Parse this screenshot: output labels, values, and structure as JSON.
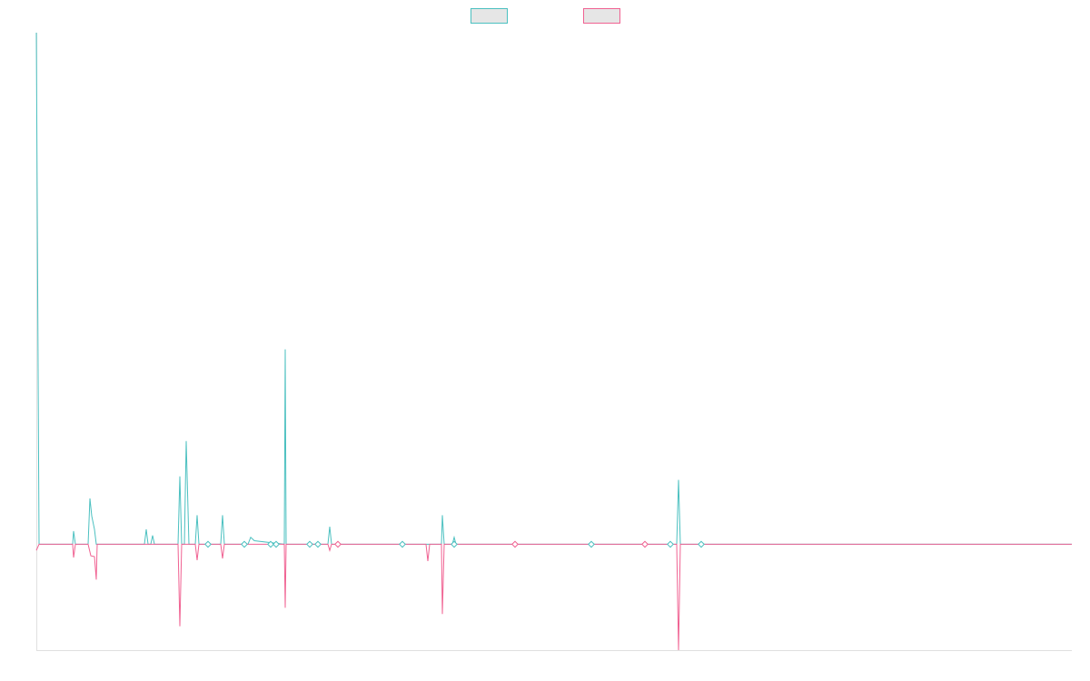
{
  "chart_data": {
    "type": "line",
    "title": "",
    "xlabel": "",
    "ylabel": "",
    "grid": false,
    "legend_position": "top-center",
    "ylim": [
      -120,
      580
    ],
    "series": [
      {
        "color": "#4bc0c0",
        "points": [
          [
            0,
            580
          ],
          [
            3,
            0
          ],
          [
            40,
            0
          ],
          [
            41,
            15
          ],
          [
            43,
            0
          ],
          [
            57,
            0
          ],
          [
            59,
            52
          ],
          [
            61,
            32
          ],
          [
            64,
            17
          ],
          [
            66,
            0
          ],
          [
            119,
            0
          ],
          [
            121,
            17
          ],
          [
            123,
            0
          ],
          [
            126,
            0
          ],
          [
            128,
            10
          ],
          [
            130,
            0
          ],
          [
            156,
            0
          ],
          [
            158,
            77
          ],
          [
            160,
            0
          ],
          [
            163,
            0
          ],
          [
            165,
            117
          ],
          [
            168,
            0
          ],
          [
            175,
            0
          ],
          [
            177,
            33
          ],
          [
            179,
            0
          ],
          [
            203,
            0
          ],
          [
            205,
            33
          ],
          [
            207,
            0
          ],
          [
            233,
            0
          ],
          [
            236,
            8
          ],
          [
            240,
            4
          ],
          [
            273,
            0
          ],
          [
            274,
            221
          ],
          [
            275,
            0
          ],
          [
            321,
            0
          ],
          [
            323,
            20
          ],
          [
            325,
            0
          ],
          [
            446,
            0
          ],
          [
            447,
            33
          ],
          [
            449,
            0
          ],
          [
            458,
            0
          ],
          [
            460,
            8
          ],
          [
            462,
            0
          ],
          [
            705,
            0
          ],
          [
            707,
            73
          ],
          [
            709,
            0
          ],
          [
            1140,
            0
          ]
        ]
      },
      {
        "color": "#f06292",
        "points": [
          [
            0,
            -7
          ],
          [
            3,
            0
          ],
          [
            40,
            0
          ],
          [
            41,
            -15
          ],
          [
            43,
            0
          ],
          [
            57,
            0
          ],
          [
            60,
            -13
          ],
          [
            64,
            -14
          ],
          [
            66,
            -40
          ],
          [
            67,
            0
          ],
          [
            156,
            0
          ],
          [
            158,
            -93
          ],
          [
            160,
            0
          ],
          [
            175,
            0
          ],
          [
            177,
            -18
          ],
          [
            179,
            0
          ],
          [
            203,
            0
          ],
          [
            205,
            -16
          ],
          [
            207,
            0
          ],
          [
            273,
            0
          ],
          [
            274,
            -72
          ],
          [
            275,
            0
          ],
          [
            321,
            0
          ],
          [
            323,
            -7
          ],
          [
            325,
            0
          ],
          [
            330,
            0
          ],
          [
            332,
            -2
          ],
          [
            334,
            0
          ],
          [
            429,
            0
          ],
          [
            431,
            -19
          ],
          [
            433,
            0
          ],
          [
            446,
            0
          ],
          [
            447,
            -79
          ],
          [
            449,
            0
          ],
          [
            705,
            0
          ],
          [
            707,
            -120
          ],
          [
            709,
            0
          ],
          [
            1140,
            0
          ]
        ]
      }
    ],
    "markers": [
      {
        "x": 189,
        "color": "#4bc0c0"
      },
      {
        "x": 229,
        "color": "#4bc0c0"
      },
      {
        "x": 258,
        "color": "#4bc0c0"
      },
      {
        "x": 264,
        "color": "#4bc0c0"
      },
      {
        "x": 301,
        "color": "#4bc0c0"
      },
      {
        "x": 310,
        "color": "#4bc0c0"
      },
      {
        "x": 332,
        "color": "#f06292"
      },
      {
        "x": 403,
        "color": "#4bc0c0"
      },
      {
        "x": 460,
        "color": "#4bc0c0"
      },
      {
        "x": 527,
        "color": "#f06292"
      },
      {
        "x": 611,
        "color": "#4bc0c0"
      },
      {
        "x": 670,
        "color": "#f06292"
      },
      {
        "x": 698,
        "color": "#4bc0c0"
      },
      {
        "x": 732,
        "color": "#4bc0c0"
      }
    ],
    "legend": [
      {
        "color": "#4bc0c0"
      },
      {
        "color": "#f06292"
      }
    ]
  }
}
